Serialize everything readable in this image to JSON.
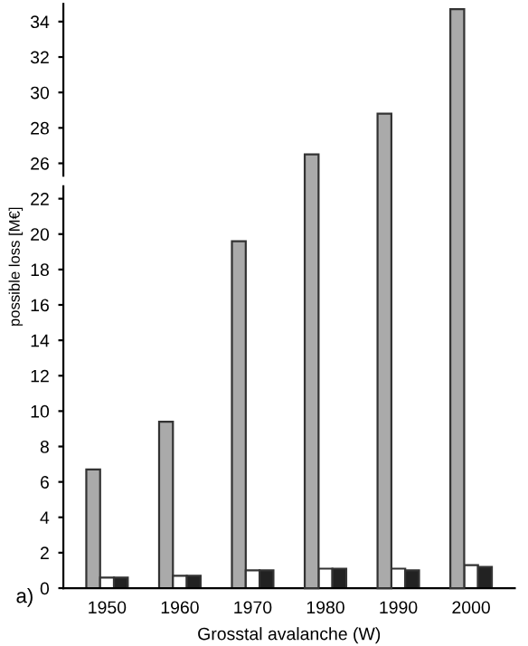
{
  "chart_data": [
    {
      "type": "bar",
      "categories": [
        "1950",
        "1960",
        "1970",
        "1980",
        "1990",
        "2000"
      ],
      "ylim": [
        25.3,
        35
      ],
      "yticks": [
        26,
        28,
        30,
        32,
        34
      ],
      "tick_labels": "y",
      "grid": false,
      "legend": false,
      "series": [
        {
          "color": "#aaaaaa",
          "values": [
            null,
            null,
            null,
            26.5,
            28.8,
            34.7
          ]
        }
      ]
    },
    {
      "type": "bar",
      "categories": [
        "1950",
        "1960",
        "1970",
        "1980",
        "1990",
        "2000"
      ],
      "ylim": [
        0,
        22.7
      ],
      "yticks": [
        0,
        2,
        4,
        6,
        8,
        10,
        12,
        14,
        16,
        18,
        20,
        22
      ],
      "xlabel": "Grosstal avalanche (W)",
      "ylabel": "possible loss [M€]",
      "annotations": [
        "a)"
      ],
      "grid": false,
      "legend": false,
      "series": [
        {
          "color": "#aaaaaa",
          "values": [
            6.7,
            9.4,
            19.6,
            null,
            null,
            null
          ]
        },
        {
          "color": "#ffffff",
          "values": [
            0.6,
            0.7,
            1.0,
            1.1,
            1.1,
            1.3
          ]
        },
        {
          "color": "#222222",
          "values": [
            0.6,
            0.7,
            1.0,
            1.1,
            1.0,
            1.2
          ]
        }
      ]
    }
  ]
}
